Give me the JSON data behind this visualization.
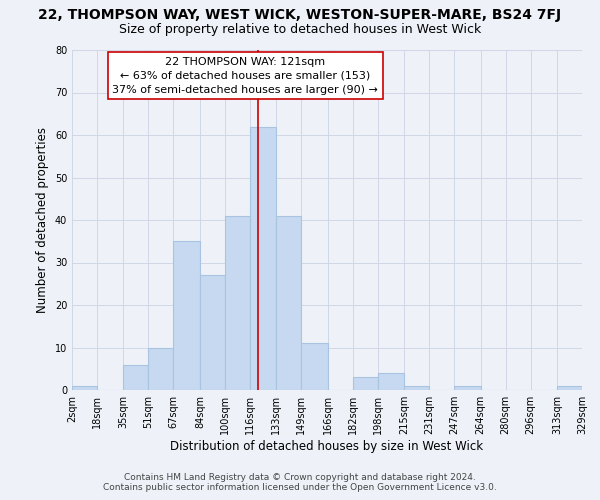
{
  "title": "22, THOMPSON WAY, WEST WICK, WESTON-SUPER-MARE, BS24 7FJ",
  "subtitle": "Size of property relative to detached houses in West Wick",
  "xlabel": "Distribution of detached houses by size in West Wick",
  "ylabel": "Number of detached properties",
  "bin_edges": [
    2,
    18,
    35,
    51,
    67,
    84,
    100,
    116,
    133,
    149,
    166,
    182,
    198,
    215,
    231,
    247,
    264,
    280,
    296,
    313,
    329
  ],
  "bar_heights": [
    1,
    0,
    6,
    10,
    35,
    27,
    41,
    62,
    41,
    11,
    0,
    3,
    4,
    1,
    0,
    1,
    0,
    0,
    0,
    1
  ],
  "bar_color": "#c6d9f0",
  "bar_edge_color": "#a8c4e0",
  "vline_x": 121,
  "vline_color": "#cc0000",
  "annotation_title": "22 THOMPSON WAY: 121sqm",
  "annotation_line1": "← 63% of detached houses are smaller (153)",
  "annotation_line2": "37% of semi-detached houses are larger (90) →",
  "annotation_box_color": "#ffffff",
  "annotation_box_edgecolor": "#cc0000",
  "ylim": [
    0,
    80
  ],
  "yticks": [
    0,
    10,
    20,
    30,
    40,
    50,
    60,
    70,
    80
  ],
  "tick_labels": [
    "2sqm",
    "18sqm",
    "35sqm",
    "51sqm",
    "67sqm",
    "84sqm",
    "100sqm",
    "116sqm",
    "133sqm",
    "149sqm",
    "166sqm",
    "182sqm",
    "198sqm",
    "215sqm",
    "231sqm",
    "247sqm",
    "264sqm",
    "280sqm",
    "296sqm",
    "313sqm",
    "329sqm"
  ],
  "footer_line1": "Contains HM Land Registry data © Crown copyright and database right 2024.",
  "footer_line2": "Contains public sector information licensed under the Open Government Licence v3.0.",
  "grid_color": "#d0d8e8",
  "background_color": "#eef2f8",
  "title_fontsize": 10,
  "subtitle_fontsize": 9,
  "axis_label_fontsize": 8.5,
  "tick_fontsize": 7,
  "annotation_fontsize": 8,
  "footer_fontsize": 6.5
}
